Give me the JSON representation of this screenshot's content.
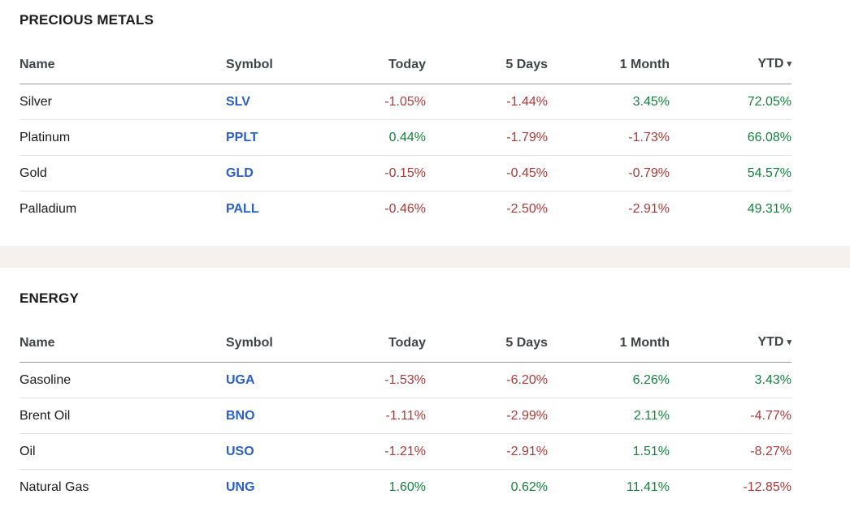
{
  "colors": {
    "positive": "#15803d",
    "negative": "#a93a3a",
    "link_blue": "#2a5fc9",
    "band": "#f5f1ef"
  },
  "columns": [
    "Name",
    "Symbol",
    "Today",
    "5 Days",
    "1 Month",
    "YTD"
  ],
  "sort": {
    "column": "YTD",
    "arrow": "▾"
  },
  "sections": [
    {
      "title": "PRECIOUS METALS",
      "rows": [
        {
          "name": "Silver",
          "symbol": "SLV",
          "today": "-1.05%",
          "d5": "-1.44%",
          "m1": "3.45%",
          "ytd": "72.05%"
        },
        {
          "name": "Platinum",
          "symbol": "PPLT",
          "today": "0.44%",
          "d5": "-1.79%",
          "m1": "-1.73%",
          "ytd": "66.08%"
        },
        {
          "name": "Gold",
          "symbol": "GLD",
          "today": "-0.15%",
          "d5": "-0.45%",
          "m1": "-0.79%",
          "ytd": "54.57%"
        },
        {
          "name": "Palladium",
          "symbol": "PALL",
          "today": "-0.46%",
          "d5": "-2.50%",
          "m1": "-2.91%",
          "ytd": "49.31%"
        }
      ]
    },
    {
      "title": "ENERGY",
      "rows": [
        {
          "name": "Gasoline",
          "symbol": "UGA",
          "today": "-1.53%",
          "d5": "-6.20%",
          "m1": "6.26%",
          "ytd": "3.43%"
        },
        {
          "name": "Brent Oil",
          "symbol": "BNO",
          "today": "-1.11%",
          "d5": "-2.99%",
          "m1": "2.11%",
          "ytd": "-4.77%"
        },
        {
          "name": "Oil",
          "symbol": "USO",
          "today": "-1.21%",
          "d5": "-2.91%",
          "m1": "1.51%",
          "ytd": "-8.27%"
        },
        {
          "name": "Natural Gas",
          "symbol": "UNG",
          "today": "1.60%",
          "d5": "0.62%",
          "m1": "11.41%",
          "ytd": "-12.85%"
        }
      ]
    }
  ]
}
